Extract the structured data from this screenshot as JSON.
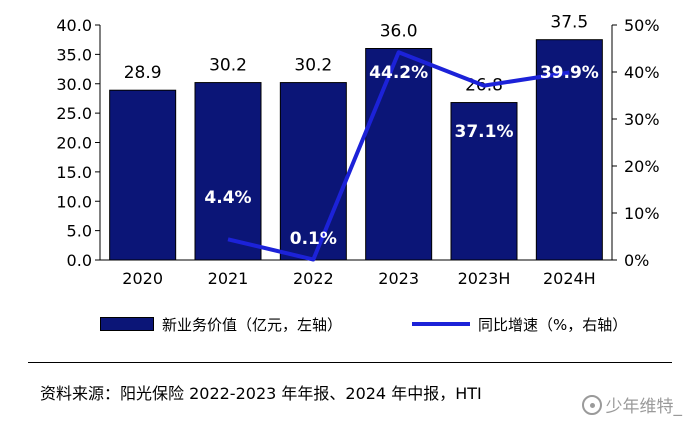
{
  "chart_data": {
    "type": "bar",
    "categories": [
      "2020",
      "2021",
      "2022",
      "2023",
      "2023H",
      "2024H"
    ],
    "series": [
      {
        "name": "新业务价值（亿元，左轴）",
        "type": "bar",
        "axis": "left",
        "values": [
          28.9,
          30.2,
          30.2,
          36.0,
          26.8,
          37.5
        ],
        "labels": [
          "28.9",
          "30.2",
          "30.2",
          "36.0",
          "26.8",
          "37.5"
        ],
        "color": "#0b1577"
      },
      {
        "name": "同比增速（%，右轴）",
        "type": "line",
        "axis": "right",
        "values": [
          null,
          4.4,
          0.1,
          44.2,
          37.1,
          39.9
        ],
        "labels": [
          "",
          "4.4%",
          "0.1%",
          "44.2%",
          "37.1%",
          "39.9%"
        ],
        "color": "#1c22d8"
      }
    ],
    "y_left": {
      "ylim": [
        0,
        40
      ],
      "ticks": [
        "0.0",
        "5.0",
        "10.0",
        "15.0",
        "20.0",
        "25.0",
        "30.0",
        "35.0",
        "40.0"
      ]
    },
    "y_right": {
      "ylim": [
        0,
        50
      ],
      "ticks": [
        "0%",
        "10%",
        "20%",
        "30%",
        "40%",
        "50%"
      ]
    },
    "grid": false,
    "legend": "bottom"
  },
  "source_note": "资料来源：阳光保险 2022-2023 年年报、2024 年中报，HTI",
  "watermark": "少年维特_"
}
